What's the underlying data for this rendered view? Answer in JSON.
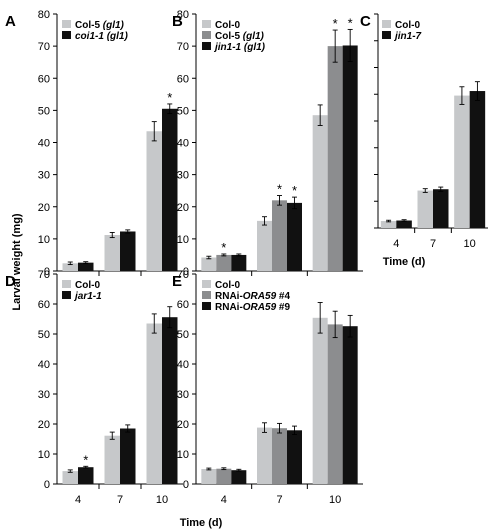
{
  "y_axis_label": "Larval weight (mg)",
  "x_axis_label": "Time (d)",
  "colors": {
    "light": "#c6c8ca",
    "mid": "#8c8d8f",
    "dark": "#111111"
  },
  "chart_data": [
    {
      "panel": "A",
      "type": "bar",
      "categories": [
        "4",
        "7",
        "10"
      ],
      "ylim": [
        0,
        80
      ],
      "yticks": [
        0,
        10,
        20,
        30,
        40,
        50,
        60,
        70,
        80
      ],
      "series": [
        {
          "name": "Col-5 (gl1)",
          "color": "light",
          "values": [
            2.4,
            11.2,
            43.5
          ],
          "errors": [
            0.4,
            0.8,
            3.0
          ]
        },
        {
          "name": "coi1-1 (gl1)",
          "color": "dark",
          "values": [
            2.6,
            12.3,
            50.5
          ],
          "errors": [
            0.3,
            0.5,
            1.5
          ]
        }
      ],
      "significance": [
        [
          1,
          2
        ]
      ]
    },
    {
      "panel": "B",
      "type": "bar",
      "categories": [
        "4",
        "7",
        "10"
      ],
      "ylim": [
        0,
        80
      ],
      "yticks": [
        0,
        10,
        20,
        30,
        40,
        50,
        60,
        70,
        80
      ],
      "series": [
        {
          "name": "Col-0",
          "color": "light",
          "values": [
            4.2,
            15.6,
            48.5
          ],
          "errors": [
            0.4,
            1.3,
            3.2
          ]
        },
        {
          "name": "Col-5 (gl1)",
          "color": "mid",
          "values": [
            5.0,
            22.0,
            70.0
          ],
          "errors": [
            0.3,
            1.5,
            5.0
          ]
        },
        {
          "name": "jin1-1 (gl1)",
          "color": "dark",
          "values": [
            5.0,
            21.2,
            70.2
          ],
          "errors": [
            0.3,
            1.8,
            5.0
          ]
        }
      ],
      "significance": [
        [
          1,
          0
        ],
        [
          1,
          1
        ],
        [
          2,
          1
        ],
        [
          1,
          2
        ],
        [
          2,
          2
        ]
      ]
    },
    {
      "panel": "C",
      "type": "bar",
      "categories": [
        "4",
        "7",
        "10"
      ],
      "ylim": [
        0,
        80
      ],
      "yticks": [],
      "series": [
        {
          "name": "Col-0",
          "color": "light",
          "values": [
            2.6,
            14.0,
            49.5
          ],
          "errors": [
            0.3,
            0.7,
            3.3
          ]
        },
        {
          "name": "jin1-7",
          "color": "dark",
          "values": [
            2.8,
            14.5,
            51.2
          ],
          "errors": [
            0.3,
            0.8,
            3.5
          ]
        }
      ],
      "significance": []
    },
    {
      "panel": "D",
      "type": "bar",
      "categories": [
        "4",
        "7",
        "10"
      ],
      "ylim": [
        0,
        70
      ],
      "yticks": [
        0,
        10,
        20,
        30,
        40,
        50,
        60,
        70
      ],
      "series": [
        {
          "name": "Col-0",
          "color": "light",
          "values": [
            4.3,
            16.1,
            53.5
          ],
          "errors": [
            0.4,
            1.2,
            3.2
          ]
        },
        {
          "name": "jar1-1",
          "color": "dark",
          "values": [
            5.6,
            18.5,
            55.6
          ],
          "errors": [
            0.3,
            1.2,
            3.5
          ]
        }
      ],
      "significance": [
        [
          1,
          0
        ]
      ]
    },
    {
      "panel": "E",
      "type": "bar",
      "categories": [
        "4",
        "7",
        "10"
      ],
      "ylim": [
        0,
        70
      ],
      "yticks": [
        0,
        10,
        20,
        30,
        40,
        50,
        60,
        70
      ],
      "series": [
        {
          "name": "Col-0",
          "color": "light",
          "values": [
            5.0,
            18.8,
            55.4
          ],
          "errors": [
            0.3,
            1.6,
            5.1
          ]
        },
        {
          "name": "RNAi-ORA59 #4",
          "color": "mid",
          "values": [
            5.1,
            18.6,
            53.2
          ],
          "errors": [
            0.3,
            1.6,
            4.4
          ]
        },
        {
          "name": "RNAi-ORA59 #9",
          "color": "dark",
          "values": [
            4.6,
            17.9,
            52.6
          ],
          "errors": [
            0.3,
            1.4,
            3.6
          ]
        }
      ],
      "significance": []
    }
  ]
}
